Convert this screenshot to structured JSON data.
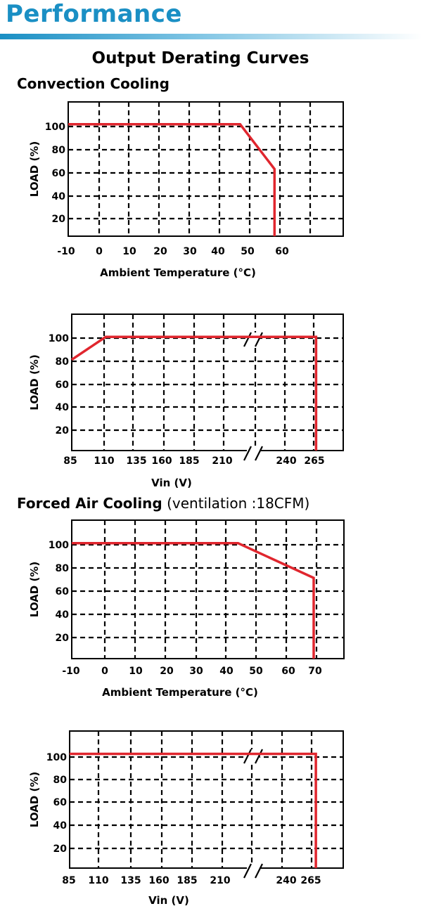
{
  "page": {
    "title": "Performance",
    "section_heading": "Output Derating Curves",
    "groups": [
      {
        "heading": "Convection Cooling",
        "subheading": ""
      },
      {
        "heading": "Forced Air Cooling",
        "subheading": " (ventilation :18CFM)"
      }
    ]
  },
  "colors": {
    "title_blue": "#1a8fc4",
    "curve_red": "#e0262e",
    "grid": "#000000"
  },
  "chart_data": [
    {
      "type": "line",
      "group": "Convection Cooling",
      "xlabel": "Ambient Temperature (°C)",
      "ylabel": "LOAD (%)",
      "x_ticks": [
        "-10",
        "0",
        "10",
        "20",
        "30",
        "40",
        "50",
        "60"
      ],
      "y_ticks": [
        "100",
        "80",
        "60",
        "40",
        "20"
      ],
      "xlim": [
        -10,
        70
      ],
      "ylim": [
        0,
        120
      ],
      "grid": true,
      "axis_break": false,
      "series": [
        {
          "x": [
            -10,
            40,
            50,
            50
          ],
          "y": [
            100,
            100,
            60,
            0
          ]
        }
      ]
    },
    {
      "type": "line",
      "group": "Convection Cooling",
      "xlabel": "Vin (V)",
      "ylabel": "LOAD (%)",
      "x_ticks": [
        "85",
        "110",
        "135",
        "160",
        "185",
        "210",
        "240",
        "265"
      ],
      "y_ticks": [
        "100",
        "80",
        "60",
        "40",
        "20"
      ],
      "xlim": [
        85,
        285
      ],
      "ylim": [
        0,
        120
      ],
      "grid": true,
      "axis_break": true,
      "series": [
        {
          "x": [
            85,
            110,
            265,
            265
          ],
          "y": [
            80,
            100,
            100,
            0
          ]
        }
      ]
    },
    {
      "type": "line",
      "group": "Forced Air Cooling",
      "xlabel": "Ambient Temperature (°C)",
      "ylabel": "LOAD (%)",
      "x_ticks": [
        "-10",
        "0",
        "10",
        "20",
        "30",
        "40",
        "50",
        "60",
        "70"
      ],
      "y_ticks": [
        "100",
        "80",
        "60",
        "40",
        "20"
      ],
      "xlim": [
        -10,
        80
      ],
      "ylim": [
        0,
        120
      ],
      "grid": true,
      "axis_break": false,
      "series": [
        {
          "x": [
            -10,
            45,
            70,
            70
          ],
          "y": [
            100,
            100,
            70,
            0
          ]
        }
      ]
    },
    {
      "type": "line",
      "group": "Forced Air Cooling",
      "xlabel": "Vin (V)",
      "ylabel": "LOAD (%)",
      "x_ticks": [
        "85",
        "110",
        "135",
        "160",
        "185",
        "210",
        "240",
        "265"
      ],
      "y_ticks": [
        "100",
        "80",
        "60",
        "40",
        "20"
      ],
      "xlim": [
        85,
        285
      ],
      "ylim": [
        0,
        120
      ],
      "grid": true,
      "axis_break": true,
      "series": [
        {
          "x": [
            85,
            265,
            265
          ],
          "y": [
            100,
            100,
            0
          ]
        }
      ]
    }
  ]
}
